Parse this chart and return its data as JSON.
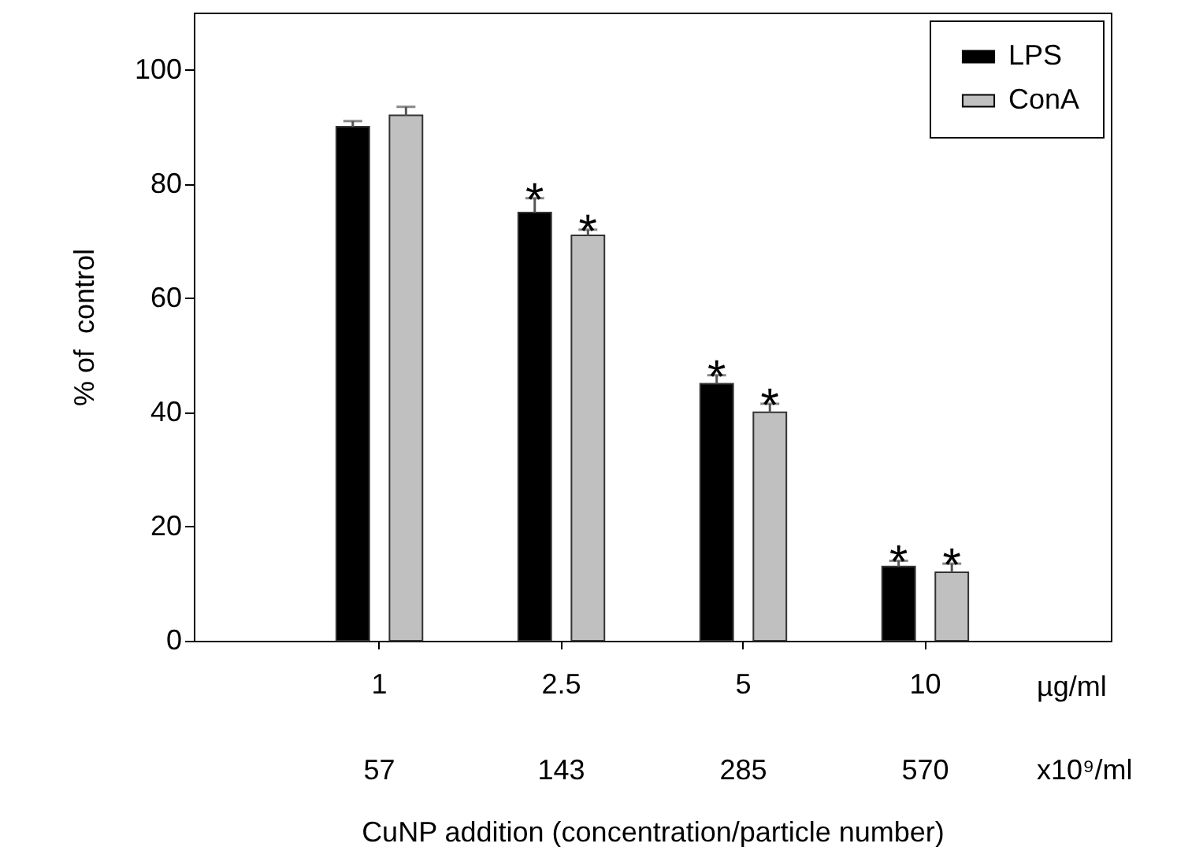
{
  "chart_data": {
    "type": "bar",
    "xlabel": "CuNP addition (concentration/particle number)",
    "ylabel": "% of  control",
    "categories": [
      "1",
      "2.5",
      "5",
      "10"
    ],
    "series": [
      {
        "name": "LPS",
        "color": "#000000",
        "values": [
          90,
          75,
          45,
          13
        ],
        "errors": [
          1,
          2.5,
          1.5,
          1
        ],
        "value_labels": [
          null,
          "*",
          "*",
          "*"
        ]
      },
      {
        "name": "ConA",
        "color": "#c0c0c0",
        "values": [
          92,
          71,
          40,
          12
        ],
        "errors": [
          1.5,
          1,
          1.5,
          1.5
        ],
        "value_labels": [
          null,
          "*",
          "*",
          "*"
        ]
      }
    ],
    "ylim": [
      0,
      110
    ],
    "yticks": [
      0,
      20,
      40,
      60,
      80,
      100
    ],
    "grid": false,
    "legend": "top right",
    "annotations": [
      "µg/ml",
      "x10⁹/ml",
      "57",
      "143",
      "285",
      "570"
    ]
  }
}
